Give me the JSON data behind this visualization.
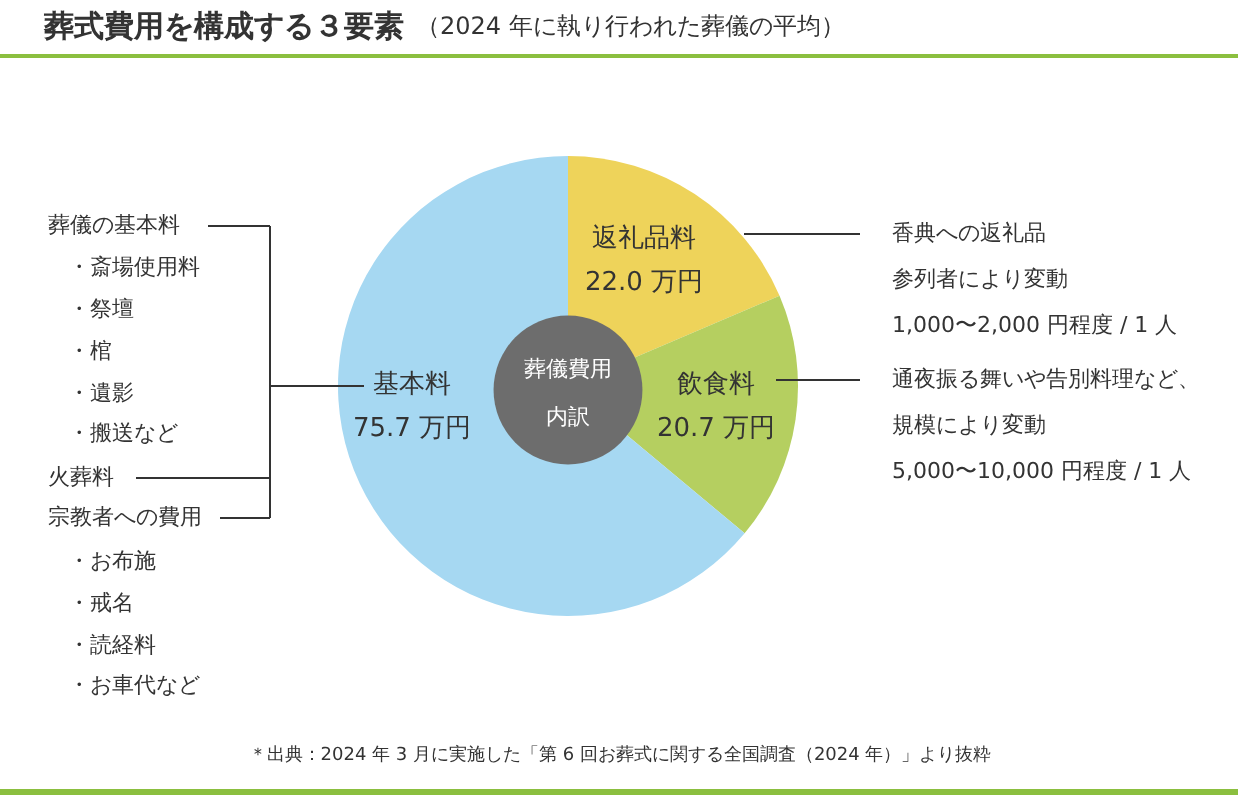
{
  "chart_data": {
    "type": "pie",
    "title": "葬式費用を構成する３要素",
    "subtitle": "（2024 年に執り行われた葬儀の平均）",
    "categories": [
      "返礼品料",
      "飲食料",
      "基本料"
    ],
    "values": [
      22.0,
      20.7,
      75.7
    ],
    "colors": [
      "#eed35a",
      "#b5cf60",
      "#a6d8f2"
    ],
    "value_labels": [
      "22.0 万円",
      "20.7 万円",
      "75.7 万円"
    ],
    "annotations": [
      "葬儀費用",
      "内訳",
      "葬儀の基本料",
      "・斎場使用料",
      "・祭壇",
      "・棺",
      "・遺影",
      "・搬送など",
      "火葬料",
      "宗教者への費用",
      "・お布施",
      "・戒名",
      "・読経料",
      "・お車代など",
      "香典への返礼品",
      "参列者により変動",
      "1,000〜2,000 円程度 / 1 人",
      "通夜振る舞いや告別料理など、",
      "規模により変動",
      "5,000〜10,000 円程度 / 1 人",
      "＊出典：2024 年 3 月に実施した「第 6 回お葬式に関する全国調査（2024 年）」より抜粋"
    ]
  }
}
